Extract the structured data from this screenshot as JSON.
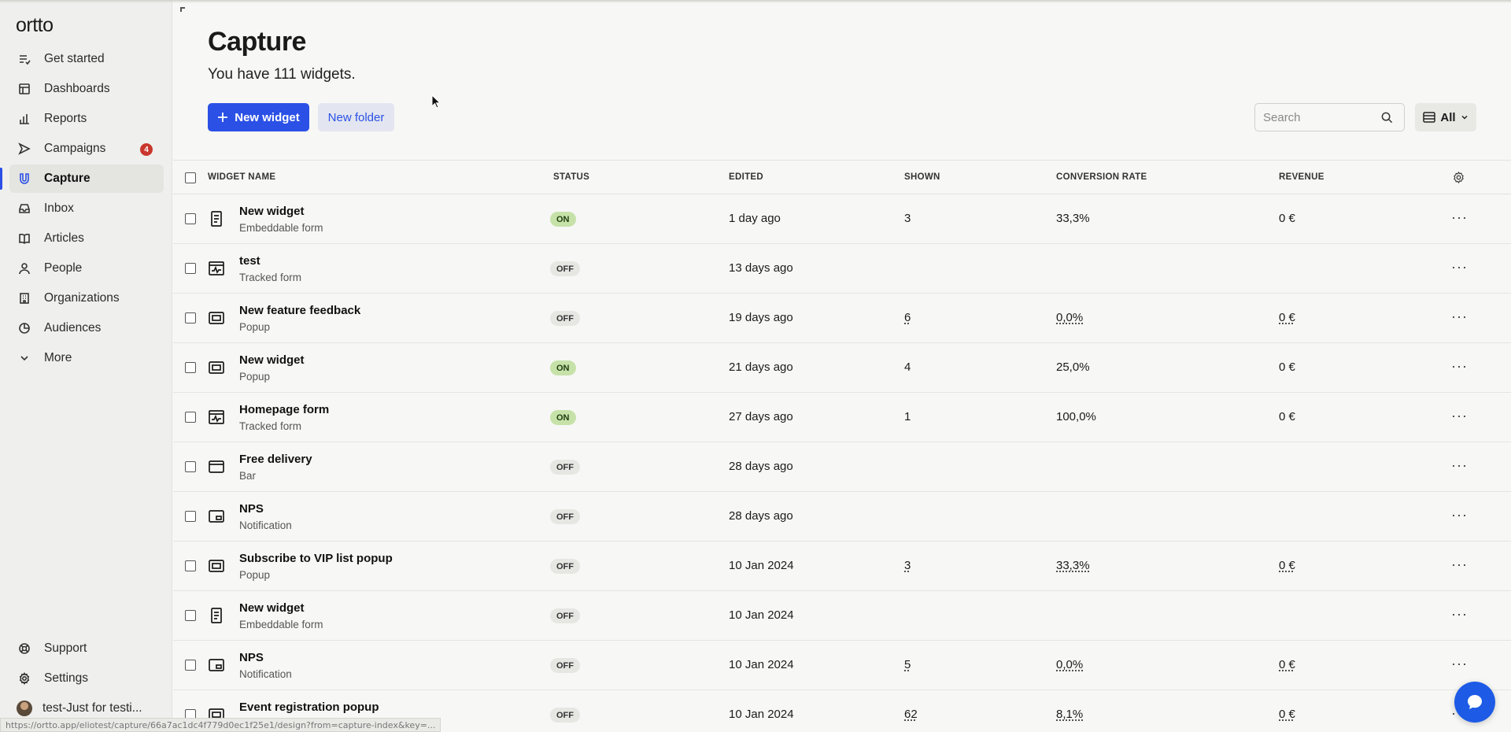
{
  "sidebar": {
    "logo": "ortto",
    "items": [
      {
        "label": "Get started",
        "icon": "checklist-icon"
      },
      {
        "label": "Dashboards",
        "icon": "dashboard-icon"
      },
      {
        "label": "Reports",
        "icon": "bar-chart-icon"
      },
      {
        "label": "Campaigns",
        "icon": "send-icon",
        "badge": "4"
      },
      {
        "label": "Capture",
        "icon": "capture-icon",
        "active": true
      },
      {
        "label": "Inbox",
        "icon": "inbox-icon"
      },
      {
        "label": "Articles",
        "icon": "book-icon"
      },
      {
        "label": "People",
        "icon": "person-icon"
      },
      {
        "label": "Organizations",
        "icon": "building-icon"
      },
      {
        "label": "Audiences",
        "icon": "pie-icon"
      },
      {
        "label": "More",
        "icon": "chevron-down-icon"
      }
    ],
    "bottom": [
      {
        "label": "Support",
        "icon": "lifebuoy-icon"
      },
      {
        "label": "Settings",
        "icon": "gear-icon"
      },
      {
        "label": "test-Just for testi...",
        "icon": "avatar"
      }
    ]
  },
  "header": {
    "title": "Capture",
    "subtitle": "You have 111 widgets.",
    "new_widget_label": "New widget",
    "new_folder_label": "New folder",
    "search_placeholder": "Search",
    "filter_label": "All"
  },
  "table": {
    "columns": [
      "WIDGET NAME",
      "STATUS",
      "EDITED",
      "SHOWN",
      "CONVERSION RATE",
      "REVENUE"
    ],
    "rows": [
      {
        "name": "New widget",
        "type": "Embeddable form",
        "icon": "form-icon",
        "status": "ON",
        "edited": "1 day ago",
        "shown": "3",
        "conversion": "33,3%",
        "revenue": "0 €",
        "ul": false
      },
      {
        "name": "test",
        "type": "Tracked form",
        "icon": "tracked-form-icon",
        "status": "OFF",
        "edited": "13 days ago",
        "shown": "",
        "conversion": "",
        "revenue": "",
        "ul": false
      },
      {
        "name": "New feature feedback",
        "type": "Popup",
        "icon": "popup-icon",
        "status": "OFF",
        "edited": "19 days ago",
        "shown": "6",
        "conversion": "0,0%",
        "revenue": "0 €",
        "ul": true
      },
      {
        "name": "New widget",
        "type": "Popup",
        "icon": "popup-icon",
        "status": "ON",
        "edited": "21 days ago",
        "shown": "4",
        "conversion": "25,0%",
        "revenue": "0 €",
        "ul": false
      },
      {
        "name": "Homepage form",
        "type": "Tracked form",
        "icon": "tracked-form-icon",
        "status": "ON",
        "edited": "27 days ago",
        "shown": "1",
        "conversion": "100,0%",
        "revenue": "0 €",
        "ul": false
      },
      {
        "name": "Free delivery",
        "type": "Bar",
        "icon": "bar-icon",
        "status": "OFF",
        "edited": "28 days ago",
        "shown": "",
        "conversion": "",
        "revenue": "",
        "ul": false
      },
      {
        "name": "NPS",
        "type": "Notification",
        "icon": "notification-icon",
        "status": "OFF",
        "edited": "28 days ago",
        "shown": "",
        "conversion": "",
        "revenue": "",
        "ul": false
      },
      {
        "name": "Subscribe to VIP list popup",
        "type": "Popup",
        "icon": "popup-icon",
        "status": "OFF",
        "edited": "10 Jan 2024",
        "shown": "3",
        "conversion": "33,3%",
        "revenue": "0 €",
        "ul": true
      },
      {
        "name": "New widget",
        "type": "Embeddable form",
        "icon": "form-icon",
        "status": "OFF",
        "edited": "10 Jan 2024",
        "shown": "",
        "conversion": "",
        "revenue": "",
        "ul": false
      },
      {
        "name": "NPS",
        "type": "Notification",
        "icon": "notification-icon",
        "status": "OFF",
        "edited": "10 Jan 2024",
        "shown": "5",
        "conversion": "0,0%",
        "revenue": "0 €",
        "ul": true
      },
      {
        "name": "Event registration popup",
        "type": "Popup",
        "icon": "popup-icon",
        "status": "OFF",
        "edited": "10 Jan 2024",
        "shown": "62",
        "conversion": "8,1%",
        "revenue": "0 €",
        "ul": true
      }
    ]
  },
  "status_bar_url": "https://ortto.app/eliotest/capture/66a7ac1dc4f779d0ec1f25e1/design?from=capture-index&key=...",
  "colors": {
    "accent": "#2b50e6",
    "badge": "#c9372c",
    "status_on": "#c6e2a8",
    "status_off": "#e6e6e3",
    "chat": "#1d5be6"
  }
}
